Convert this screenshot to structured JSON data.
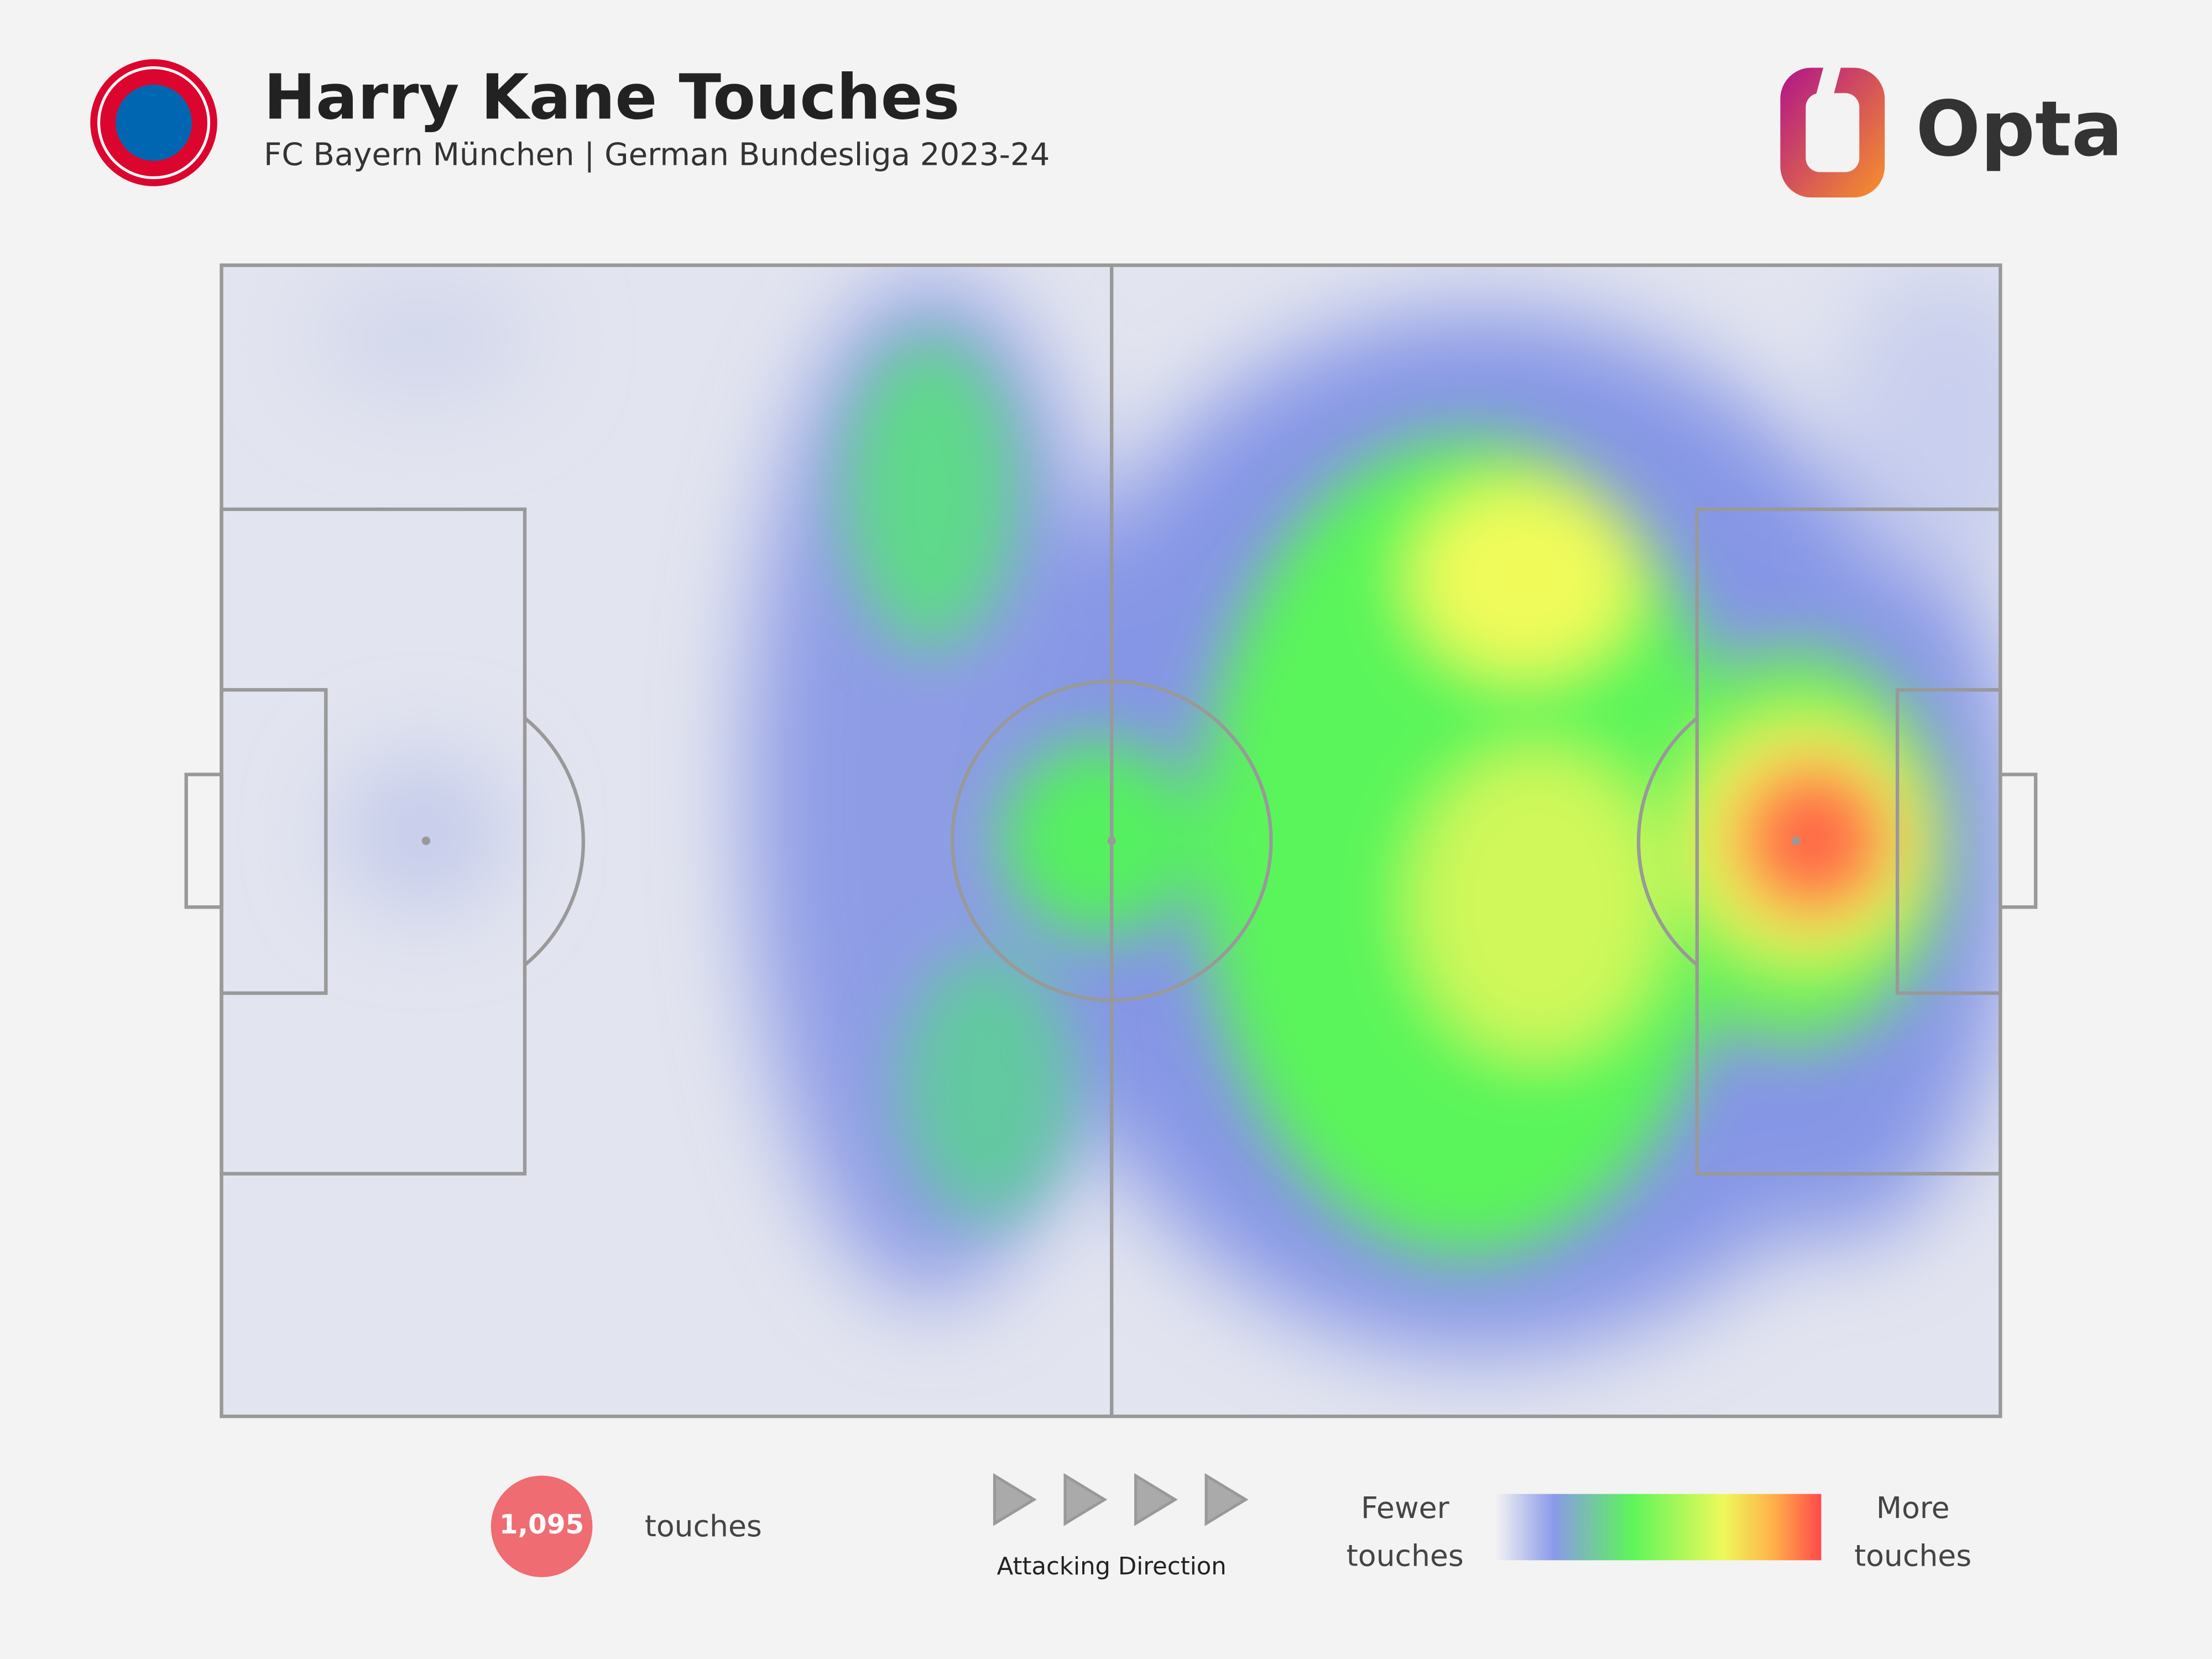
{
  "header": {
    "title": "Harry Kane Touches",
    "subtitle": "FC Bayern München | German Bundesliga 2023-24",
    "brand": "Opta"
  },
  "footer": {
    "touches_count": "1,095",
    "touches_label": "touches",
    "direction_label": "Attacking Direction",
    "legend_low": "Fewer touches",
    "legend_high": "More touches"
  }
}
